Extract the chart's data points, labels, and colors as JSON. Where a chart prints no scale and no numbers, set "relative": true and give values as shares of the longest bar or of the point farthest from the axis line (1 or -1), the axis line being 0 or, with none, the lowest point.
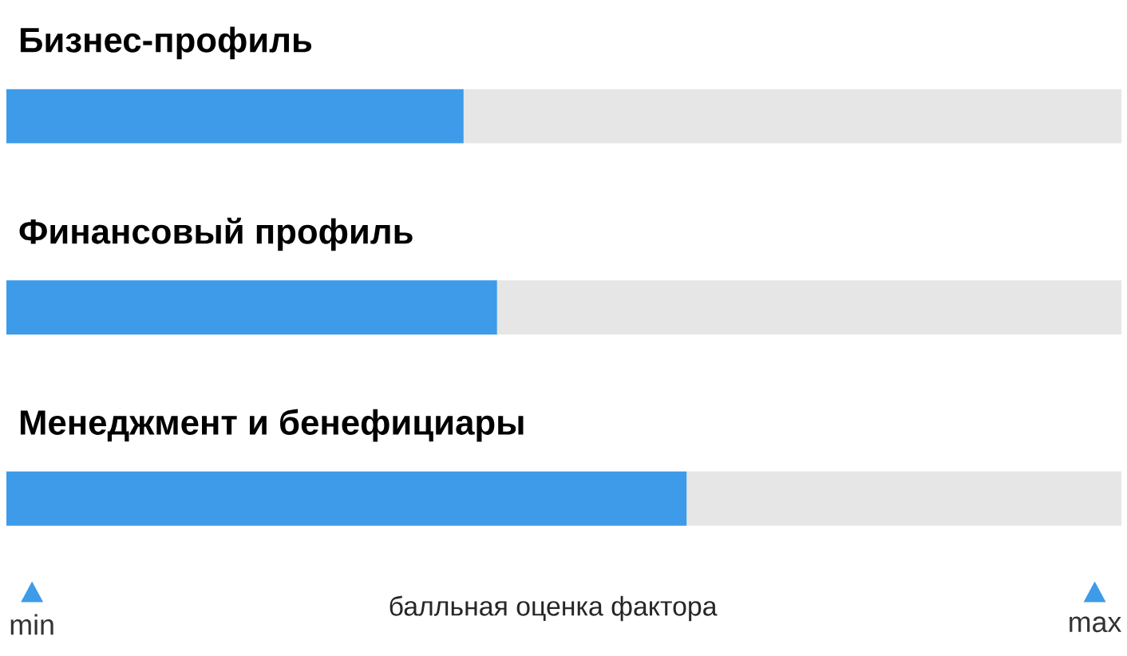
{
  "chart_data": {
    "type": "bar",
    "orientation": "horizontal",
    "stacked": true,
    "relative": true,
    "categories": [
      "Бизнес-профиль",
      "Финансовый профиль",
      "Менеджмент и бенефициары"
    ],
    "series": [
      {
        "color": "#3d9be9",
        "values": [
          0.41,
          0.44,
          0.61
        ]
      },
      {
        "color": "#e6e6e6",
        "values": [
          0.59,
          0.56,
          0.39
        ]
      }
    ],
    "xlabel": "балльная оценка фактора",
    "annotations": [
      "min",
      "max"
    ]
  }
}
